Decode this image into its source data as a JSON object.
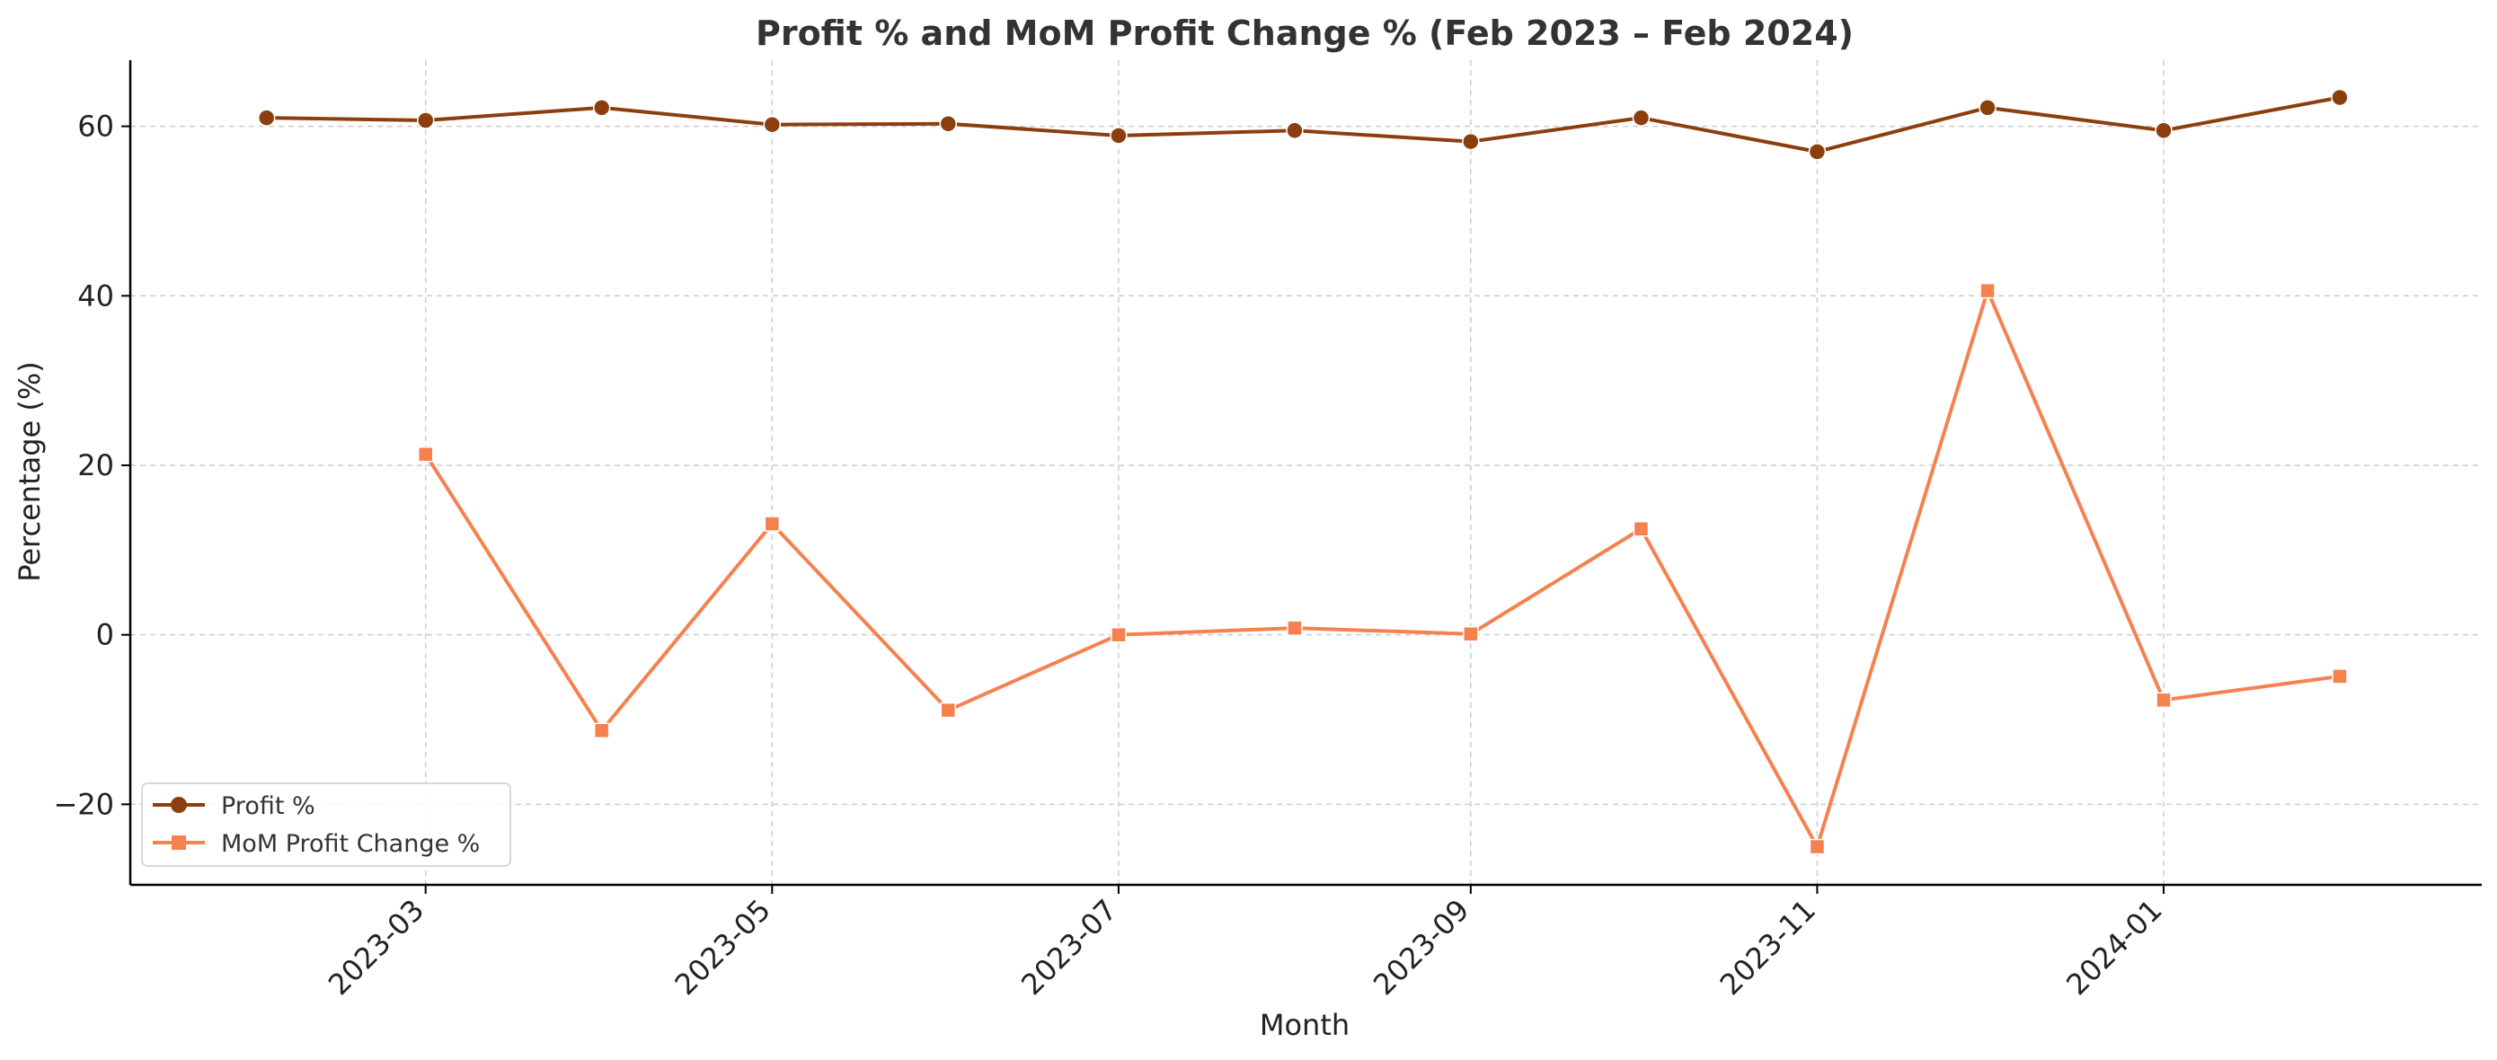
{
  "chart_data": {
    "type": "line",
    "title": "Profit % and MoM Profit Change % (Feb 2023 – Feb 2024)",
    "xlabel": "Month",
    "ylabel": "Percentage (%)",
    "x": [
      "2023-02",
      "2023-03",
      "2023-04",
      "2023-05",
      "2023-06",
      "2023-07",
      "2023-08",
      "2023-09",
      "2023-10",
      "2023-11",
      "2023-12",
      "2024-01",
      "2024-02"
    ],
    "xticks": [
      "2023-03",
      "2023-05",
      "2023-07",
      "2023-09",
      "2023-11",
      "2024-01"
    ],
    "xlim": [
      "2023-01-08",
      "2024-02-26"
    ],
    "yticks": [
      -20,
      0,
      20,
      40,
      60
    ],
    "ylim": [
      -29.5,
      67.8
    ],
    "grid": true,
    "legend_position": "bottom-left",
    "series": [
      {
        "name": "Profit %",
        "color": "#8B3F0E",
        "marker": "circle",
        "values": [
          61.0,
          60.7,
          62.2,
          60.2,
          60.3,
          58.9,
          59.5,
          58.2,
          61.0,
          57.0,
          62.2,
          59.5,
          63.4
        ]
      },
      {
        "name": "MoM Profit Change %",
        "color": "#F5814F",
        "marker": "square",
        "values": [
          null,
          21.3,
          -11.3,
          13.1,
          -8.9,
          0.0,
          0.8,
          0.1,
          12.5,
          -25.0,
          40.6,
          -7.7,
          -4.9
        ]
      }
    ]
  }
}
